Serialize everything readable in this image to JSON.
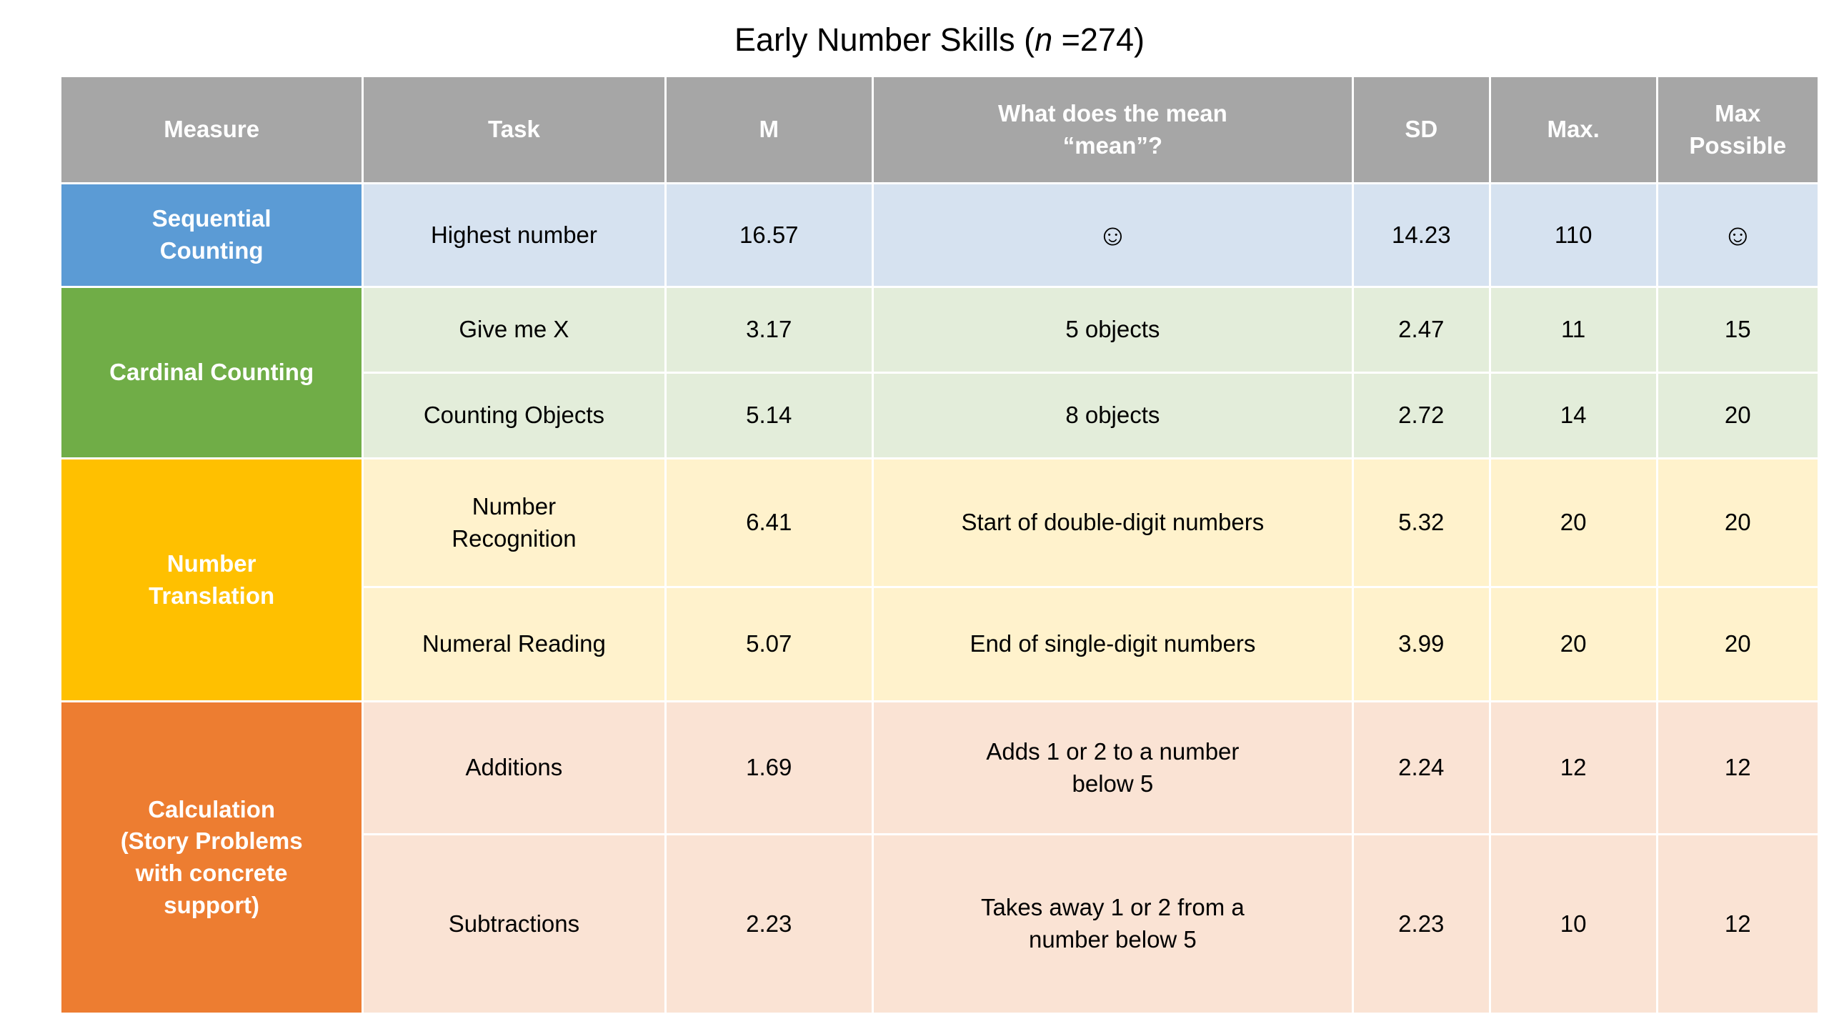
{
  "title": {
    "prefix": "Early Number Skills (",
    "italic_n": "n",
    "suffix": " =274)"
  },
  "colors": {
    "header_bg": "#A6A6A6",
    "header_text": "#FFFFFF",
    "sequential_counting": "#5B9BD5",
    "sequential_counting_light": "#D6E2F0",
    "cardinal_counting": "#70AD47",
    "cardinal_counting_light": "#E3EDDA",
    "number_translation": "#FFC000",
    "number_translation_light": "#FFF2CC",
    "calculation": "#ED7D31",
    "calculation_light": "#FAE3D4",
    "body_text": "#000000"
  },
  "chart_data": {
    "type": "table",
    "title": "Early Number Skills (n =274)",
    "columns": [
      "Measure",
      "Task",
      "M",
      "What does the mean “mean”?",
      "SD",
      "Max.",
      "Max Possible"
    ],
    "rows": [
      [
        "Sequential Counting",
        "Highest number",
        "16.57",
        "☺",
        "14.23",
        "110",
        "☺"
      ],
      [
        "Cardinal Counting",
        "Give me X",
        "3.17",
        "5 objects",
        "2.47",
        "11",
        "15"
      ],
      [
        "Cardinal Counting",
        "Counting Objects",
        "5.14",
        "8 objects",
        "2.72",
        "14",
        "20"
      ],
      [
        "Number Translation",
        "Number Recognition",
        "6.41",
        "Start of double-digit numbers",
        "5.32",
        "20",
        "20"
      ],
      [
        "Number Translation",
        "Numeral Reading",
        "5.07",
        "End of single-digit numbers",
        "3.99",
        "20",
        "20"
      ],
      [
        "Calculation (Story Problems with concrete support)",
        "Additions",
        "1.69",
        "Adds 1 or 2 to a number below 5",
        "2.24",
        "12",
        "12"
      ],
      [
        "Calculation (Story Problems with concrete support)",
        "Subtractions",
        "2.23",
        "Takes away 1 or 2 from a number below 5",
        "2.23",
        "10",
        "12"
      ]
    ]
  },
  "header": {
    "measure": "Measure",
    "task": "Task",
    "m": "M",
    "mean_lines": [
      "What does the mean",
      "“mean”?"
    ],
    "sd": "SD",
    "max": "Max.",
    "maxp_lines": [
      "Max",
      "Possible"
    ]
  },
  "sections": [
    {
      "measure_lines": [
        "Sequential",
        "Counting"
      ],
      "rows": [
        {
          "task": [
            "Highest number"
          ],
          "m": "16.57",
          "mean": [
            "☺"
          ],
          "sd": "14.23",
          "max": "110",
          "maxp": "☺"
        }
      ]
    },
    {
      "measure_lines": [
        "Cardinal Counting"
      ],
      "rows": [
        {
          "task": [
            "Give me X"
          ],
          "m": "3.17",
          "mean": [
            "5 objects"
          ],
          "sd": "2.47",
          "max": "11",
          "maxp": "15"
        },
        {
          "task": [
            "Counting Objects"
          ],
          "m": "5.14",
          "mean": [
            "8 objects"
          ],
          "sd": "2.72",
          "max": "14",
          "maxp": "20"
        }
      ]
    },
    {
      "measure_lines": [
        "Number",
        "Translation"
      ],
      "rows": [
        {
          "task": [
            "Number",
            "Recognition"
          ],
          "m": "6.41",
          "mean": [
            "Start of double-digit numbers"
          ],
          "sd": "5.32",
          "max": "20",
          "maxp": "20"
        },
        {
          "task": [
            "Numeral Reading"
          ],
          "m": "5.07",
          "mean": [
            "End of single-digit numbers"
          ],
          "sd": "3.99",
          "max": "20",
          "maxp": "20"
        }
      ]
    },
    {
      "measure_lines": [
        "Calculation",
        "(Story Problems",
        "with concrete",
        "support)"
      ],
      "rows": [
        {
          "task": [
            "Additions"
          ],
          "m": "1.69",
          "mean": [
            "Adds 1 or 2 to a number",
            "below 5"
          ],
          "sd": "2.24",
          "max": "12",
          "maxp": "12"
        },
        {
          "task": [
            "Subtractions"
          ],
          "m": "2.23",
          "mean": [
            "Takes away 1 or 2 from a",
            "number below 5"
          ],
          "sd": "2.23",
          "max": "10",
          "maxp": "12"
        }
      ]
    }
  ]
}
